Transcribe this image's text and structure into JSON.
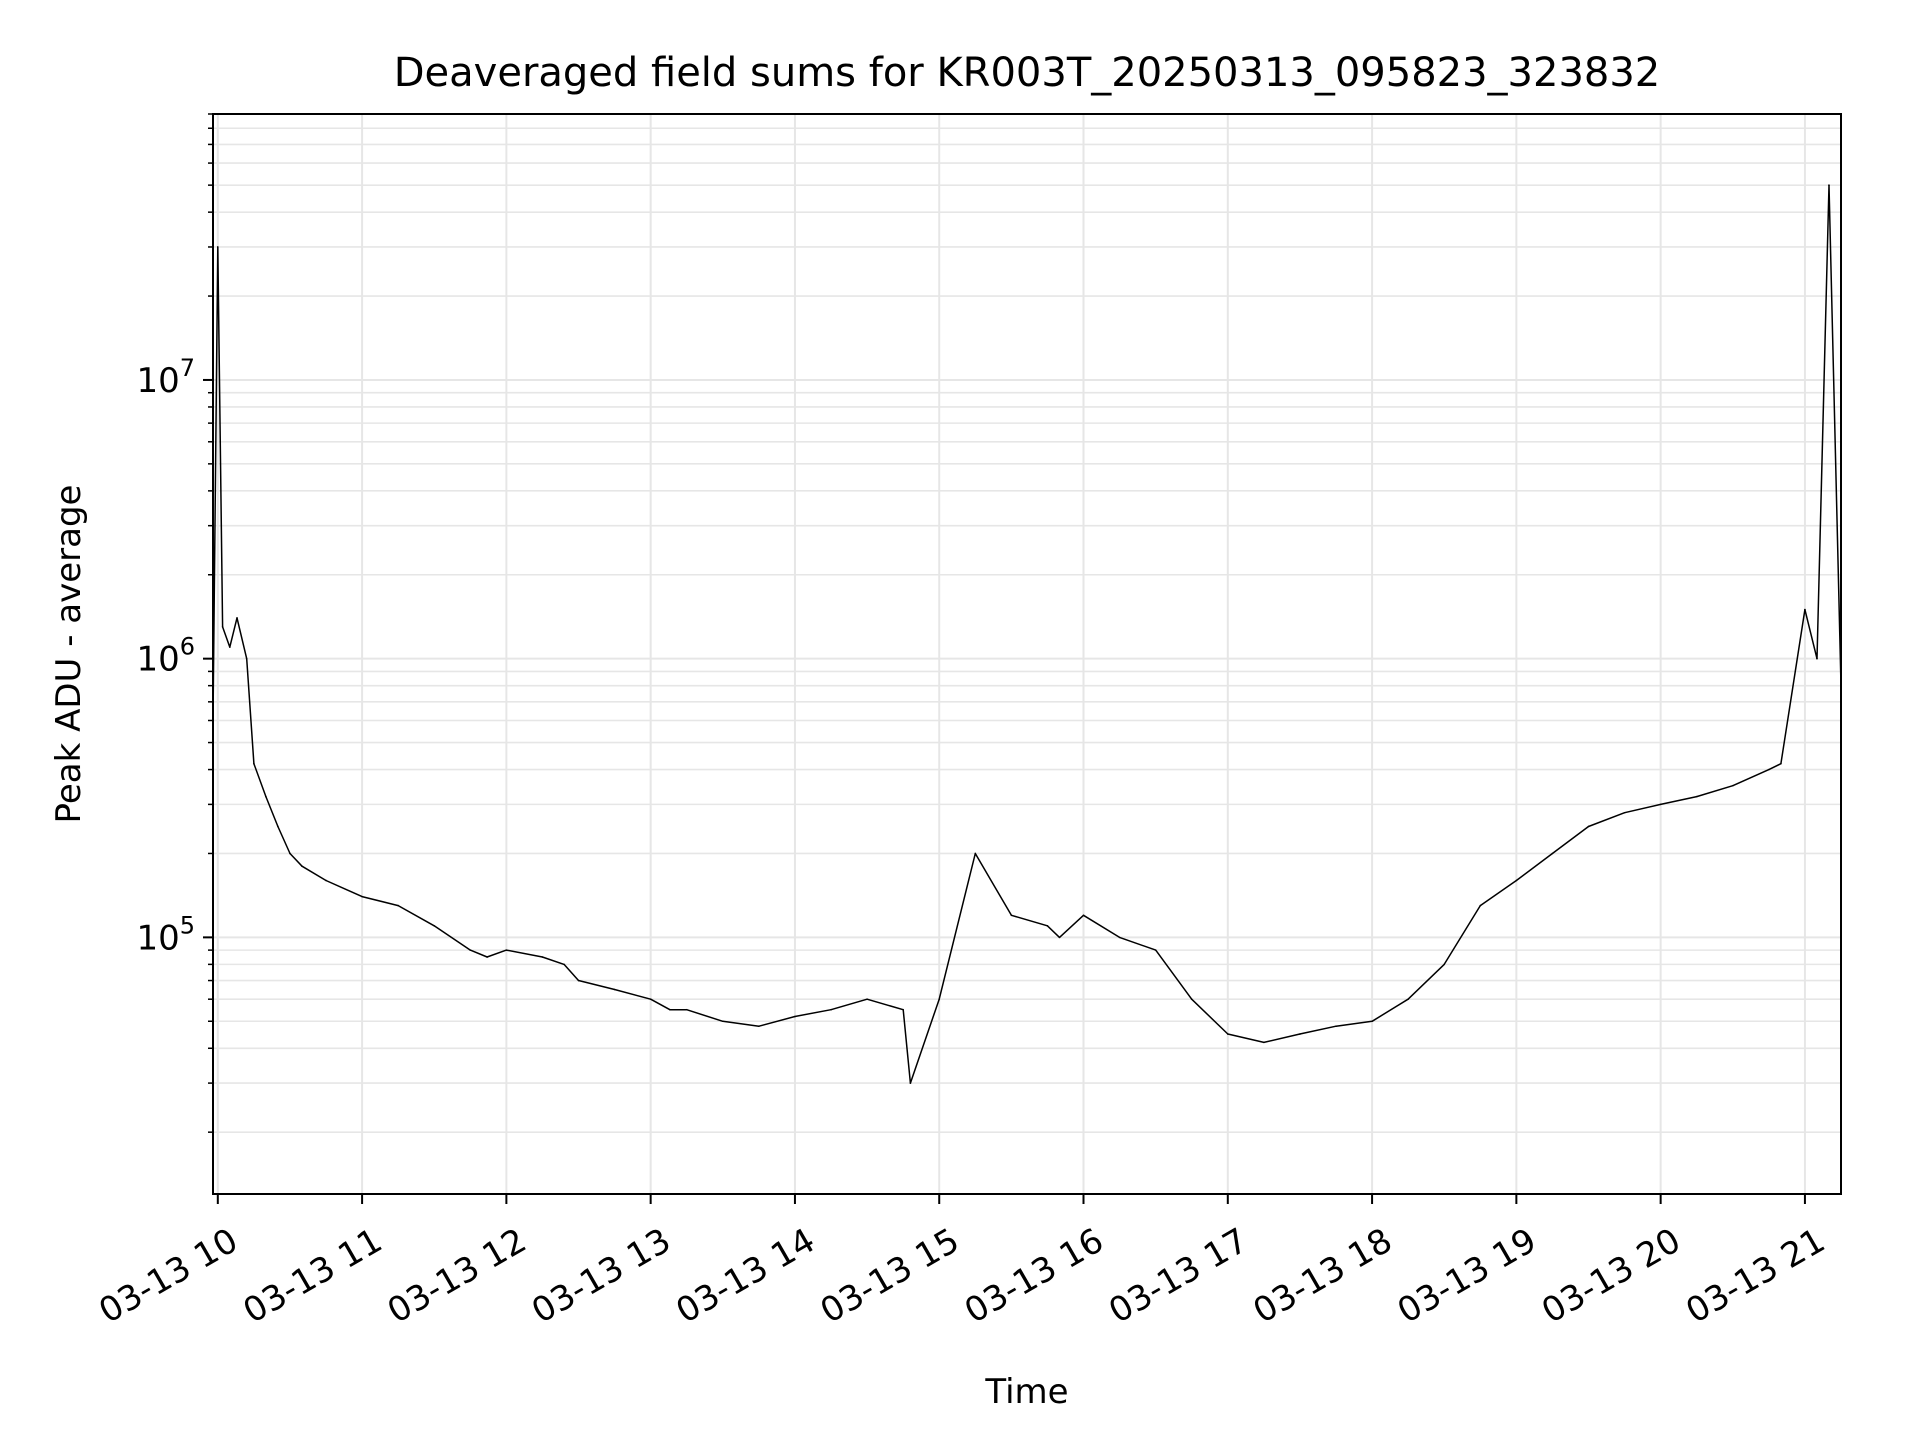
{
  "chart_data": {
    "type": "line",
    "title": "Deaveraged field sums for KR003T_20250313_095823_323832",
    "xlabel": "Time",
    "ylabel": "Peak ADU - average",
    "yscale": "log",
    "grid": true,
    "grid_minor": true,
    "line_color": "#000000",
    "grid_color": "#e6e6e6",
    "x_tick_labels": [
      "03-13 10",
      "03-13 11",
      "03-13 12",
      "03-13 13",
      "03-13 14",
      "03-13 15",
      "03-13 16",
      "03-13 17",
      "03-13 18",
      "03-13 19",
      "03-13 20",
      "03-13 21"
    ],
    "x_tick_hours": [
      10,
      11,
      12,
      13,
      14,
      15,
      16,
      17,
      18,
      19,
      20,
      21
    ],
    "xlim": [
      "2025-03-13 09:58",
      "2025-03-13 21:15"
    ],
    "y_ticks": [
      {
        "value": 100000,
        "base": "10",
        "exp": "5"
      },
      {
        "value": 1000000,
        "base": "10",
        "exp": "6"
      },
      {
        "value": 10000000,
        "base": "10",
        "exp": "7"
      }
    ],
    "ylim": [
      12000,
      90000000
    ],
    "series": [
      {
        "x": [
          "2025-03-13 09:58",
          "2025-03-13 10:00",
          "2025-03-13 10:02",
          "2025-03-13 10:05",
          "2025-03-13 10:08",
          "2025-03-13 10:12",
          "2025-03-13 10:15",
          "2025-03-13 10:20",
          "2025-03-13 10:25",
          "2025-03-13 10:30",
          "2025-03-13 10:35",
          "2025-03-13 10:45",
          "2025-03-13 11:00",
          "2025-03-13 11:15",
          "2025-03-13 11:30",
          "2025-03-13 11:45",
          "2025-03-13 11:52",
          "2025-03-13 12:00",
          "2025-03-13 12:15",
          "2025-03-13 12:24",
          "2025-03-13 12:30",
          "2025-03-13 12:45",
          "2025-03-13 13:00",
          "2025-03-13 13:08",
          "2025-03-13 13:15",
          "2025-03-13 13:30",
          "2025-03-13 13:45",
          "2025-03-13 14:00",
          "2025-03-13 14:15",
          "2025-03-13 14:30",
          "2025-03-13 14:45",
          "2025-03-13 14:48",
          "2025-03-13 15:00",
          "2025-03-13 15:15",
          "2025-03-13 15:30",
          "2025-03-13 15:45",
          "2025-03-13 15:50",
          "2025-03-13 16:00",
          "2025-03-13 16:15",
          "2025-03-13 16:30",
          "2025-03-13 16:45",
          "2025-03-13 17:00",
          "2025-03-13 17:15",
          "2025-03-13 17:30",
          "2025-03-13 17:45",
          "2025-03-13 18:00",
          "2025-03-13 18:15",
          "2025-03-13 18:30",
          "2025-03-13 18:45",
          "2025-03-13 19:00",
          "2025-03-13 19:15",
          "2025-03-13 19:30",
          "2025-03-13 19:45",
          "2025-03-13 20:00",
          "2025-03-13 20:15",
          "2025-03-13 20:30",
          "2025-03-13 20:45",
          "2025-03-13 20:50",
          "2025-03-13 21:00",
          "2025-03-13 21:05",
          "2025-03-13 21:10",
          "2025-03-13 21:15"
        ],
        "values": [
          600000,
          30000000,
          1300000,
          1100000,
          1400000,
          1000000,
          420000,
          320000,
          250000,
          200000,
          180000,
          160000,
          140000,
          130000,
          110000,
          90000,
          85000,
          90000,
          85000,
          80000,
          70000,
          65000,
          60000,
          55000,
          55000,
          50000,
          48000,
          52000,
          55000,
          60000,
          55000,
          30000,
          60000,
          200000,
          120000,
          110000,
          100000,
          120000,
          100000,
          90000,
          60000,
          45000,
          42000,
          45000,
          48000,
          50000,
          60000,
          80000,
          130000,
          160000,
          200000,
          250000,
          280000,
          300000,
          320000,
          350000,
          400000,
          420000,
          1500000,
          1000000,
          50000000,
          800000
        ]
      }
    ]
  }
}
